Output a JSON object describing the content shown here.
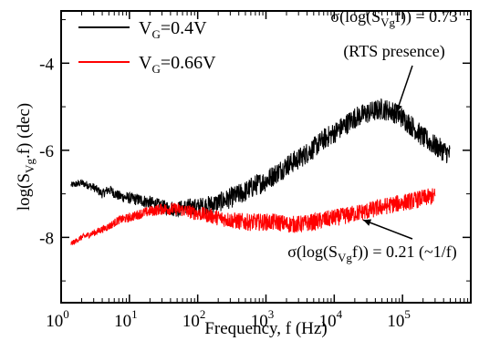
{
  "chart_data": {
    "type": "line",
    "title": "",
    "xlabel": "Frequency, f (Hz)",
    "ylabel": {
      "prefix": "log(S",
      "sub": "Vg",
      "suffix": ".f) (dec)"
    },
    "x_scale": "log",
    "xlim": [
      1,
      1000000
    ],
    "ylim": [
      -9.5,
      -2.8
    ],
    "x_ticks": [
      {
        "base": "10",
        "exp": "0",
        "value": 1
      },
      {
        "base": "10",
        "exp": "1",
        "value": 10
      },
      {
        "base": "10",
        "exp": "2",
        "value": 100
      },
      {
        "base": "10",
        "exp": "3",
        "value": 1000
      },
      {
        "base": "10",
        "exp": "4",
        "value": 10000
      },
      {
        "base": "10",
        "exp": "5",
        "value": 100000
      }
    ],
    "y_ticks": [
      {
        "label": "-4",
        "value": -4
      },
      {
        "label": "-6",
        "value": -6
      },
      {
        "label": "-8",
        "value": -8
      }
    ],
    "grid": false,
    "legend_position": "top-left",
    "series": [
      {
        "name": {
          "prefix": "V",
          "sub": "G",
          "suffix": "=0.4V"
        },
        "color": "#000000",
        "x": [
          1.4,
          2,
          3,
          4,
          5,
          7,
          10,
          15,
          20,
          30,
          50,
          70,
          100,
          150,
          200,
          300,
          500,
          700,
          1000,
          1500,
          2000,
          3000,
          5000,
          7000,
          10000,
          15000,
          20000,
          30000,
          50000,
          70000,
          100000,
          150000,
          200000,
          300000,
          500000
        ],
        "y": [
          -6.8,
          -6.75,
          -6.85,
          -7.0,
          -6.9,
          -7.05,
          -7.1,
          -7.15,
          -7.2,
          -7.3,
          -7.35,
          -7.3,
          -7.3,
          -7.25,
          -7.2,
          -7.1,
          -6.95,
          -6.8,
          -6.7,
          -6.5,
          -6.35,
          -6.2,
          -5.95,
          -5.75,
          -5.6,
          -5.4,
          -5.25,
          -5.15,
          -5.05,
          -5.1,
          -5.25,
          -5.5,
          -5.7,
          -5.9,
          -6.1
        ],
        "noise": 0.25
      },
      {
        "name": {
          "prefix": "V",
          "sub": "G",
          "suffix": "=0.66V"
        },
        "color": "#ff0000",
        "x": [
          1.4,
          2,
          3,
          5,
          7,
          10,
          15,
          20,
          30,
          50,
          70,
          100,
          150,
          200,
          300,
          500,
          700,
          1000,
          1500,
          2000,
          3000,
          5000,
          7000,
          10000,
          15000,
          20000,
          30000,
          50000,
          70000,
          100000,
          150000,
          200000,
          300000
        ],
        "y": [
          -8.15,
          -8.0,
          -7.9,
          -7.75,
          -7.6,
          -7.55,
          -7.45,
          -7.4,
          -7.35,
          -7.35,
          -7.4,
          -7.45,
          -7.5,
          -7.55,
          -7.6,
          -7.65,
          -7.65,
          -7.65,
          -7.65,
          -7.7,
          -7.7,
          -7.65,
          -7.6,
          -7.55,
          -7.5,
          -7.45,
          -7.4,
          -7.3,
          -7.25,
          -7.2,
          -7.15,
          -7.1,
          -7.05
        ],
        "noise": 0.2
      }
    ],
    "annotations": [
      {
        "id": "rts",
        "line1": {
          "prefix": "σ(log(S",
          "sub": "Vg",
          "suffix": "f)) = 0.73"
        },
        "line2": "(RTS presence)",
        "arrow_target": {
          "x": 60000,
          "y": -5.0
        }
      },
      {
        "id": "one-over-f",
        "line1": {
          "prefix": "σ(log(S",
          "sub": "Vg",
          "suffix": "f)) = 0.21 (~1/f)"
        },
        "arrow_target": {
          "x": 25000,
          "y": -7.6
        }
      }
    ]
  }
}
